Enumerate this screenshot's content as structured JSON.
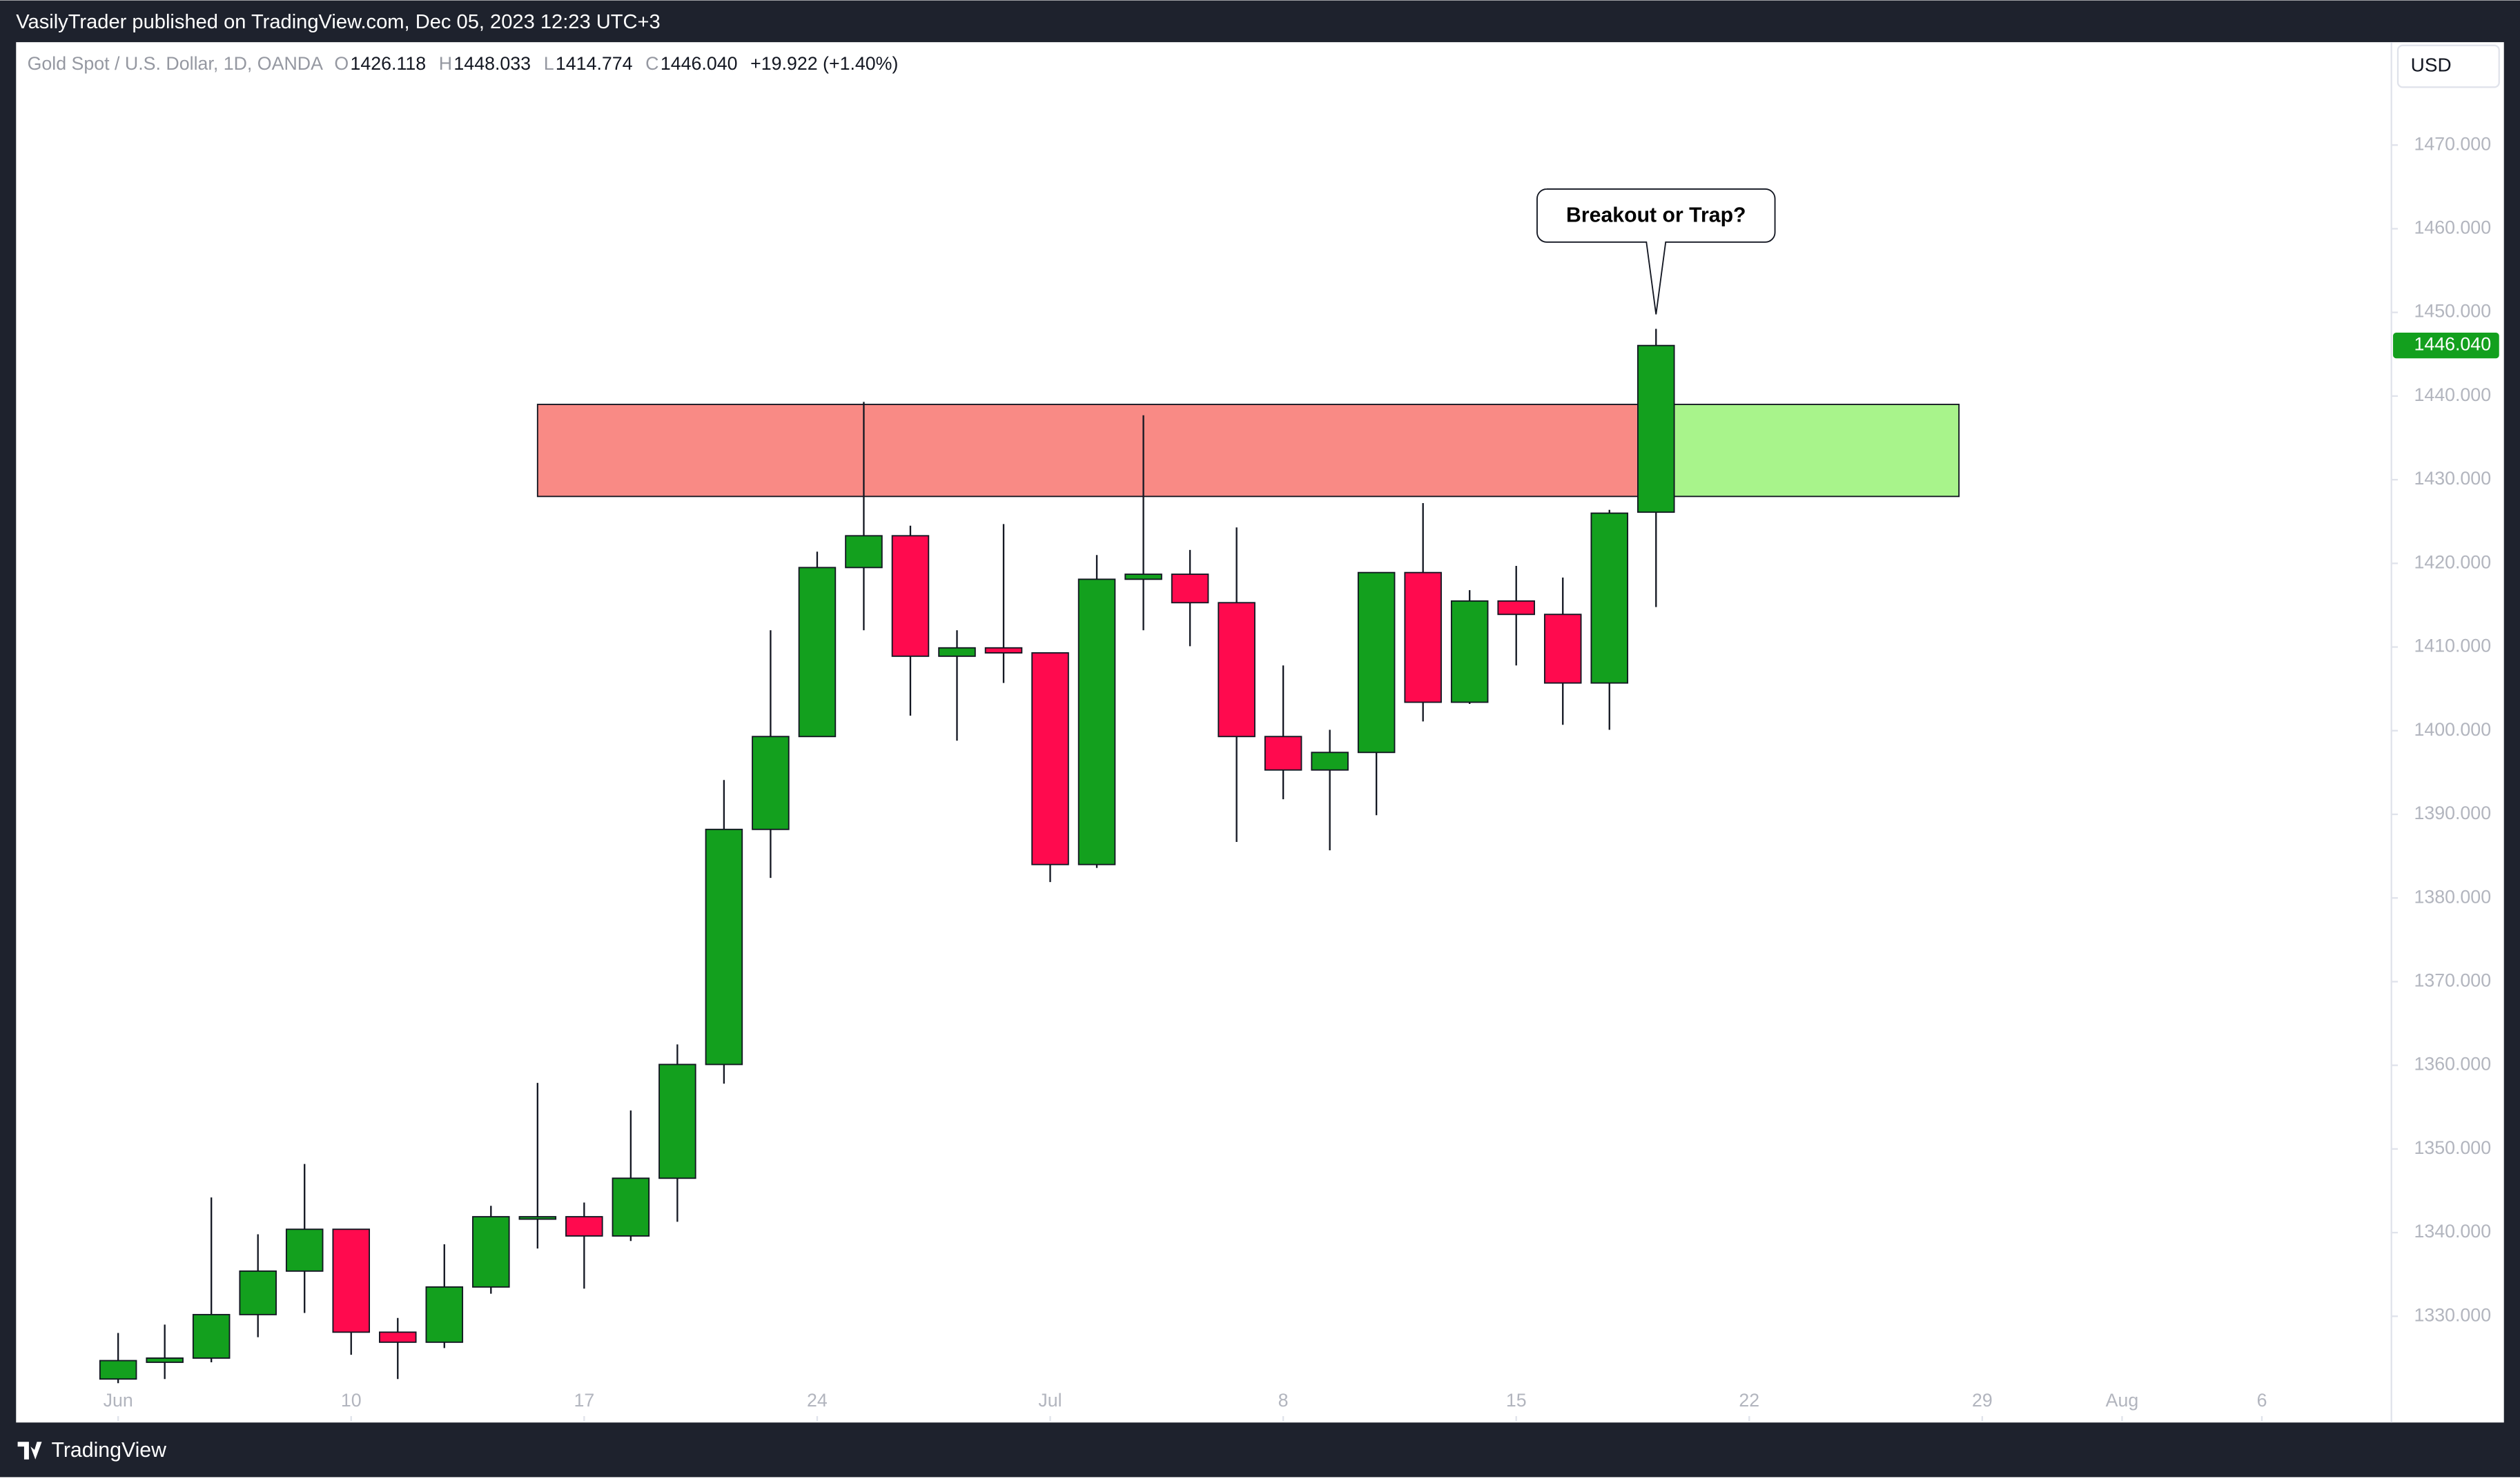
{
  "header": {
    "published": "VasilyTrader published on TradingView.com, Dec 05, 2023 12:23 UTC+3",
    "brand": "TradingView"
  },
  "chart_data": {
    "type": "candlestick",
    "symbol": "Gold Spot / U.S. Dollar, 1D, OANDA",
    "legend": {
      "o_key": "O",
      "o": "1426.118",
      "h_key": "H",
      "h": "1448.033",
      "l_key": "L",
      "l": "1414.774",
      "c_key": "C",
      "c": "1446.040",
      "change": "+19.922 (+1.40%)"
    },
    "currency": "USD",
    "last_price": 1446.04,
    "last_price_label": "1446.040",
    "annotation": "Breakout or Trap?",
    "up_color": "#13a01e",
    "down_color": "#ff0a4e",
    "zones": [
      {
        "top": 1439,
        "bottom": 1428,
        "color": "#f98a85",
        "from": 9,
        "to": 33
      },
      {
        "top": 1439,
        "bottom": 1428,
        "color": "#a8f48b",
        "from": 33,
        "to": 39.5
      }
    ],
    "open": [
      1322.5,
      1324.5,
      1325,
      1330.2,
      1335.4,
      1340.4,
      1328.1,
      1326.9,
      1333.5,
      1341.9,
      1341.9,
      1339.6,
      1346.5,
      1360.1,
      1388.2,
      1399.3,
      1419.5,
      1423.3,
      1408.9,
      1409.9,
      1409.3,
      1384,
      1418.1,
      1418.7,
      1415.3,
      1399.3,
      1395.3,
      1397.4,
      1418.9,
      1403.4,
      1415.5,
      1413.9,
      1405.7,
      1426.118
    ],
    "high": [
      1328,
      1329,
      1344.2,
      1339.8,
      1348.2,
      1340.4,
      1329.8,
      1338.6,
      1343.2,
      1357.9,
      1343.6,
      1354.6,
      1362.5,
      1394.1,
      1412,
      1421.4,
      1439.3,
      1424.5,
      1412,
      1424.7,
      1409.3,
      1421,
      1437.7,
      1421.6,
      1424.3,
      1407.8,
      1400.1,
      1418.9,
      1427.2,
      1416.8,
      1419.7,
      1418.3,
      1426.4,
      1448.033
    ],
    "low": [
      1322,
      1322.5,
      1324.5,
      1327.5,
      1330.4,
      1325.4,
      1322.5,
      1326.2,
      1332.7,
      1338.1,
      1333.3,
      1339,
      1341.3,
      1357.8,
      1382.4,
      1399.3,
      1412,
      1401.8,
      1398.8,
      1405.7,
      1381.9,
      1383.6,
      1412,
      1410.1,
      1386.7,
      1391.8,
      1385.7,
      1389.9,
      1401.1,
      1403.2,
      1407.8,
      1400.7,
      1400.1,
      1414.774
    ],
    "close": [
      1324.7,
      1325,
      1330.2,
      1335.4,
      1340.4,
      1328.1,
      1326.9,
      1333.5,
      1341.9,
      1341.9,
      1339.6,
      1346.5,
      1360.1,
      1388.2,
      1399.3,
      1419.5,
      1423.3,
      1408.9,
      1409.9,
      1409.3,
      1384,
      1418.1,
      1418.7,
      1415.3,
      1399.3,
      1395.3,
      1397.4,
      1418.9,
      1403.4,
      1415.5,
      1413.9,
      1405.7,
      1426,
      1446.04
    ],
    "ylim": [
      1317.3,
      1482.3
    ],
    "yticks": [
      {
        "value": 1330,
        "label": "1330.000"
      },
      {
        "value": 1340,
        "label": "1340.000"
      },
      {
        "value": 1350,
        "label": "1350.000"
      },
      {
        "value": 1360,
        "label": "1360.000"
      },
      {
        "value": 1370,
        "label": "1370.000"
      },
      {
        "value": 1380,
        "label": "1380.000"
      },
      {
        "value": 1390,
        "label": "1390.000"
      },
      {
        "value": 1400,
        "label": "1400.000"
      },
      {
        "value": 1410,
        "label": "1410.000"
      },
      {
        "value": 1420,
        "label": "1420.000"
      },
      {
        "value": 1430,
        "label": "1430.000"
      },
      {
        "value": 1440,
        "label": "1440.000"
      },
      {
        "value": 1450,
        "label": "1450.000"
      },
      {
        "value": 1460,
        "label": "1460.000"
      },
      {
        "value": 1470,
        "label": "1470.000"
      }
    ],
    "xticks": [
      {
        "value": 0,
        "label": "Jun"
      },
      {
        "value": 5,
        "label": "10"
      },
      {
        "value": 10,
        "label": "17"
      },
      {
        "value": 15,
        "label": "24"
      },
      {
        "value": 20,
        "label": "Jul"
      },
      {
        "value": 25,
        "label": "8"
      },
      {
        "value": 30,
        "label": "15"
      },
      {
        "value": 35,
        "label": "22"
      },
      {
        "value": 40,
        "label": "29"
      },
      {
        "value": 43,
        "label": "Aug"
      },
      {
        "value": 46,
        "label": "6"
      }
    ],
    "xlim": [
      -2.19,
      48.78
    ]
  }
}
